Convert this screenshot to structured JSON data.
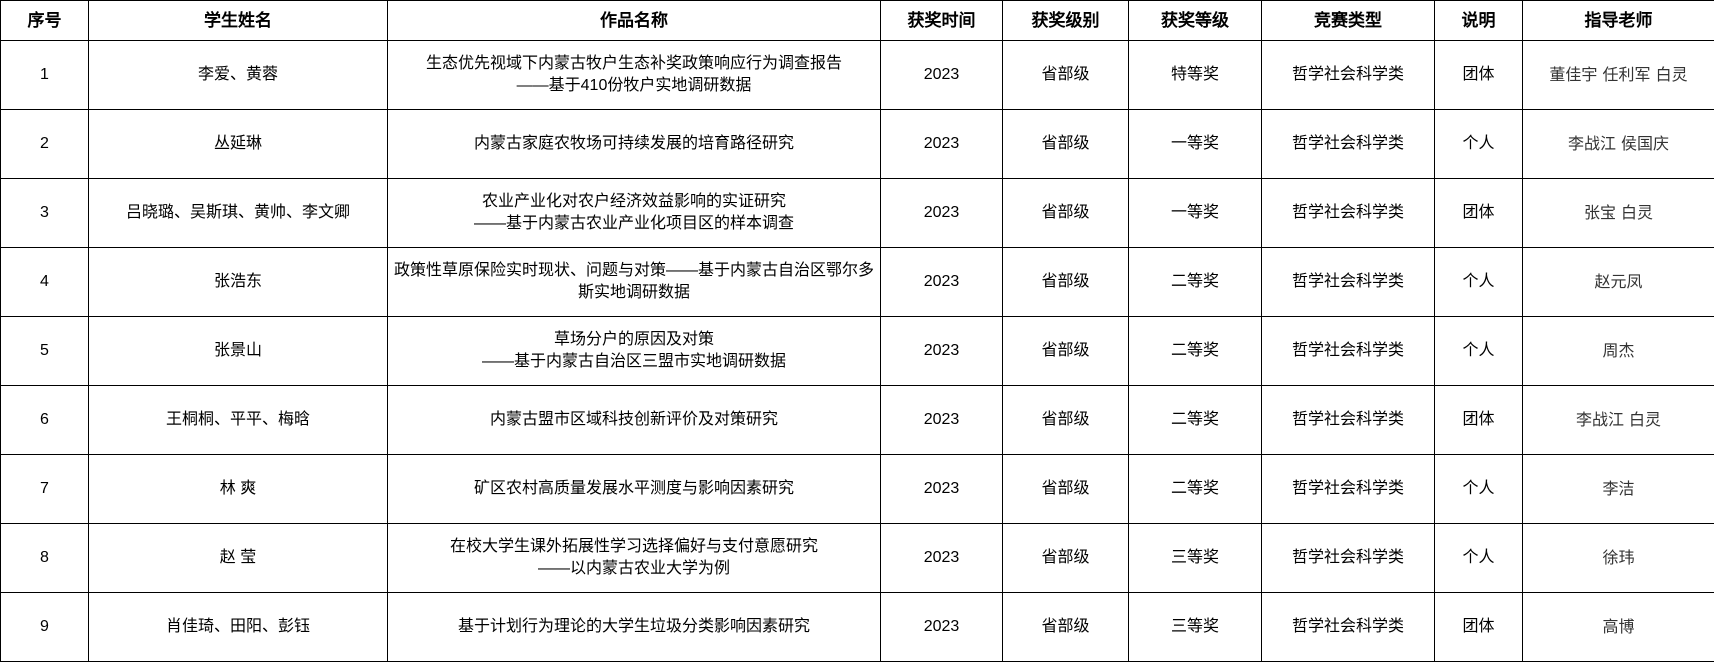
{
  "headers": [
    "序号",
    "学生姓名",
    "作品名称",
    "获奖时间",
    "获奖级别",
    "获奖等级",
    "竞赛类型",
    "说明",
    "指导老师"
  ],
  "rows": [
    [
      "1",
      "李爱、黄蓉",
      "生态优先视域下内蒙古牧户生态补奖政策响应行为调查报告\n——基于410份牧户实地调研数据",
      "2023",
      "省部级",
      "特等奖",
      "哲学社会科学类",
      "团体",
      "董佳宇  任利军  白灵"
    ],
    [
      "2",
      "丛延琳",
      "内蒙古家庭农牧场可持续发展的培育路径研究",
      "2023",
      "省部级",
      "一等奖",
      "哲学社会科学类",
      "个人",
      "李战江  侯国庆"
    ],
    [
      "3",
      "吕晓璐、吴斯琪、黄帅、李文卿",
      "农业产业化对农户经济效益影响的实证研究\n——基于内蒙古农业产业化项目区的样本调查",
      "2023",
      "省部级",
      "一等奖",
      "哲学社会科学类",
      "团体",
      "张宝  白灵"
    ],
    [
      "4",
      "张浩东",
      "政策性草原保险实时现状、问题与对策——基于内蒙古自治区鄂尔多斯实地调研数据",
      "2023",
      "省部级",
      "二等奖",
      "哲学社会科学类",
      "个人",
      "赵元凤"
    ],
    [
      "5",
      "张景山",
      "草场分户的原因及对策\n——基于内蒙古自治区三盟市实地调研数据",
      "2023",
      "省部级",
      "二等奖",
      "哲学社会科学类",
      "个人",
      "周杰"
    ],
    [
      "6",
      "王桐桐、平平、梅晗",
      "内蒙古盟市区域科技创新评价及对策研究",
      "2023",
      "省部级",
      "二等奖",
      "哲学社会科学类",
      "团体",
      "李战江  白灵"
    ],
    [
      "7",
      "林  爽",
      "矿区农村高质量发展水平测度与影响因素研究",
      "2023",
      "省部级",
      "二等奖",
      "哲学社会科学类",
      "个人",
      "李洁"
    ],
    [
      "8",
      "赵  莹",
      "在校大学生课外拓展性学习选择偏好与支付意愿研究\n——以内蒙古农业大学为例",
      "2023",
      "省部级",
      "三等奖",
      "哲学社会科学类",
      "个人",
      "徐玮"
    ],
    [
      "9",
      "肖佳琦、田阳、彭钰",
      "基于计划行为理论的大学生垃圾分类影响因素研究",
      "2023",
      "省部级",
      "三等奖",
      "哲学社会科学类",
      "团体",
      "高博"
    ]
  ]
}
